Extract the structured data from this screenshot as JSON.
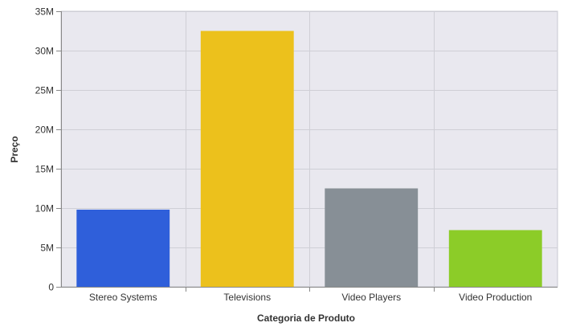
{
  "chart_data": {
    "type": "bar",
    "title": "",
    "xlabel": "Categoria de Produto",
    "ylabel": "Preço",
    "categories": [
      "Stereo Systems",
      "Televisions",
      "Video Players",
      "Video Production"
    ],
    "values": [
      9800000,
      32500000,
      12500000,
      7200000
    ],
    "colors": [
      "#2f5fda",
      "#ecc11c",
      "#878f96",
      "#8ccc28"
    ],
    "ylim": [
      0,
      35000000
    ],
    "yticks": [
      0,
      5000000,
      10000000,
      15000000,
      20000000,
      25000000,
      30000000,
      35000000
    ],
    "ytick_labels": [
      "0",
      "5M",
      "10M",
      "15M",
      "20M",
      "25M",
      "30M",
      "35M"
    ],
    "grid": true,
    "plot_background": "#e9e8ef",
    "grid_color": "#cfcfd6"
  }
}
